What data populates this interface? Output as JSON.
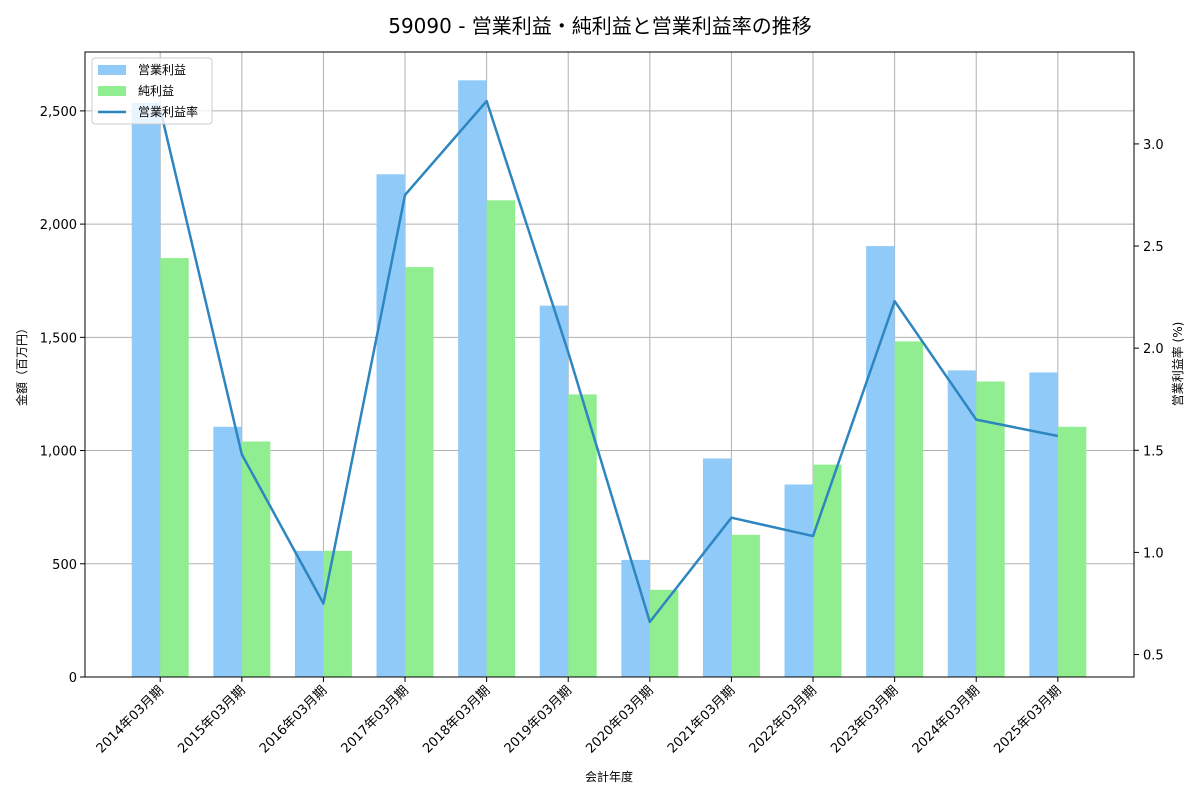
{
  "chart_data": {
    "type": "bar+line",
    "title": "59090 - 営業利益・純利益と営業利益率の推移",
    "xlabel": "会計年度",
    "ylabel": "金額（百万円）",
    "ylabel_right": "営業利益率 (%)",
    "categories": [
      "2014年03月期",
      "2015年03月期",
      "2016年03月期",
      "2017年03月期",
      "2018年03月期",
      "2019年03月期",
      "2020年03月期",
      "2021年03月期",
      "2022年03月期",
      "2023年03月期",
      "2024年03月期",
      "2025年03月期"
    ],
    "series": [
      {
        "name": "営業利益",
        "type": "bar",
        "axis": "left",
        "color": "#90CAF9",
        "values": [
          2535,
          1105,
          557,
          2220,
          2635,
          1640,
          517,
          965,
          850,
          1903,
          1354,
          1345
        ]
      },
      {
        "name": "純利益",
        "type": "bar",
        "axis": "left",
        "color": "#90EE90",
        "values": [
          1850,
          1040,
          557,
          1810,
          2105,
          1248,
          385,
          628,
          938,
          1482,
          1305,
          1105
        ]
      },
      {
        "name": "営業利益率",
        "type": "line",
        "axis": "right",
        "color": "#2E86C1",
        "values": [
          3.17,
          1.48,
          0.75,
          2.75,
          3.21,
          1.98,
          0.66,
          1.17,
          1.08,
          2.23,
          1.65,
          1.57
        ]
      }
    ],
    "ylim": [
      0,
      2760
    ],
    "ylim_right": [
      0.39,
      3.45
    ],
    "yticks": [
      0,
      500,
      1000,
      1500,
      2000,
      2500
    ],
    "ytick_labels": [
      "0",
      "500",
      "1,000",
      "1,500",
      "2,000",
      "2,500"
    ],
    "yticks_right": [
      0.5,
      1.0,
      1.5,
      2.0,
      2.5,
      3.0
    ],
    "ytick_labels_right": [
      "0.5",
      "1.0",
      "1.5",
      "2.0",
      "2.5",
      "3.0"
    ],
    "grid": true,
    "legend_position": "upper left"
  }
}
